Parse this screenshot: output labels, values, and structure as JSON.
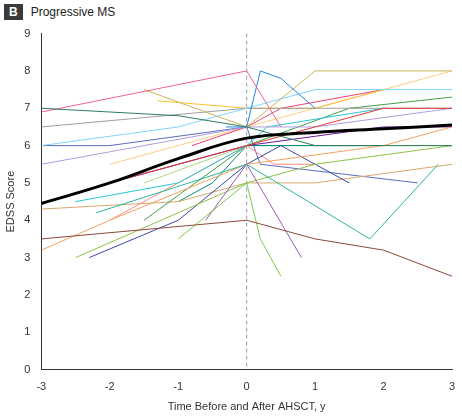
{
  "chart_data": {
    "type": "line",
    "panel": "B",
    "title": "Progressive MS",
    "x_label": "Time Before and After AHSCT, y",
    "y_label": "EDSS Score",
    "xlim": [
      -3,
      3
    ],
    "xticks": [
      -3,
      -2,
      -1,
      0,
      1,
      2,
      3
    ],
    "ylim": [
      0,
      9
    ],
    "yticks": [
      0,
      1,
      2,
      3,
      4,
      5,
      6,
      7,
      8,
      9
    ],
    "grid": false,
    "legend": false,
    "vertical_line": {
      "x": 0,
      "line_style": "dashed",
      "color": "#9e9e9e"
    },
    "series": [
      {
        "color": "#8B4A3A",
        "x": [
          -3,
          0,
          1,
          2,
          3
        ],
        "values": [
          3.5,
          4,
          3.5,
          3.2,
          2.5
        ]
      },
      {
        "color": "#2BB5A0",
        "x": [
          -2.2,
          0,
          1.8,
          2.8
        ],
        "values": [
          4.2,
          5.5,
          3.5,
          5.5
        ]
      },
      {
        "color": "#7ACB4A",
        "x": [
          -1,
          0,
          0.2,
          0.5
        ],
        "values": [
          3.5,
          5,
          3.5,
          2.5
        ]
      },
      {
        "color": "#9B59B6",
        "x": [
          -0.6,
          0,
          0.8
        ],
        "values": [
          4,
          5.5,
          3
        ]
      },
      {
        "color": "#2E7D5B",
        "x": [
          -3,
          -1,
          0,
          1,
          3
        ],
        "values": [
          7,
          6.8,
          6.5,
          6,
          6
        ]
      },
      {
        "color": "#F06292",
        "x": [
          -3,
          0,
          0.5
        ],
        "values": [
          6.9,
          8,
          6.5
        ]
      },
      {
        "color": "#1E88E5",
        "x": [
          -0.3,
          0,
          0.2,
          0.5,
          1
        ],
        "values": [
          6.5,
          6.5,
          8,
          7.8,
          7
        ]
      },
      {
        "color": "#C9B458",
        "x": [
          -1.5,
          0,
          1,
          3
        ],
        "values": [
          7.5,
          6.5,
          8,
          8
        ]
      },
      {
        "color": "#81D4FA",
        "x": [
          -3,
          -1,
          0,
          1,
          3
        ],
        "values": [
          6,
          6.5,
          7,
          7.5,
          7.5
        ]
      },
      {
        "color": "#F4A261",
        "x": [
          -3,
          -2,
          0,
          2,
          3
        ],
        "values": [
          3.2,
          4,
          5.5,
          6,
          6.5
        ]
      },
      {
        "color": "#8BC34A",
        "x": [
          -2.5,
          0,
          1,
          3
        ],
        "values": [
          3,
          5,
          5.5,
          6
        ]
      },
      {
        "color": "#3949AB",
        "x": [
          -2.3,
          -1,
          0,
          0.5,
          1.5
        ],
        "values": [
          3,
          4,
          5.5,
          6,
          5
        ]
      },
      {
        "color": "#E53935",
        "x": [
          -2,
          0,
          1,
          2,
          3
        ],
        "values": [
          5,
          6,
          6.5,
          7,
          7
        ]
      },
      {
        "color": "#B39DDB",
        "x": [
          -3,
          -1.5,
          0,
          1,
          3
        ],
        "values": [
          5.5,
          6,
          6.5,
          6.5,
          7
        ]
      },
      {
        "color": "#26C6DA",
        "x": [
          -2.5,
          -1,
          0,
          0.3,
          2
        ],
        "values": [
          4.5,
          5,
          6,
          6.5,
          7
        ]
      },
      {
        "color": "#9E9E9E",
        "x": [
          -3,
          0,
          1,
          3
        ],
        "values": [
          6.5,
          7,
          7,
          7
        ]
      },
      {
        "color": "#FBC02D",
        "x": [
          -1.3,
          0,
          1,
          2
        ],
        "values": [
          7.2,
          7,
          7,
          7.5
        ]
      },
      {
        "color": "#FF8A80",
        "x": [
          -2,
          0,
          0.4,
          1
        ],
        "values": [
          4,
          6,
          5.5,
          5.5
        ]
      },
      {
        "color": "#43A047",
        "x": [
          -1.5,
          0,
          1.5,
          3
        ],
        "values": [
          4,
          6,
          7,
          7.3
        ]
      },
      {
        "color": "#6A1B9A",
        "x": [
          -2,
          -1,
          0,
          2,
          3
        ],
        "values": [
          5,
          5.5,
          6,
          6.5,
          6.5
        ]
      },
      {
        "color": "#D7A86E",
        "x": [
          -3,
          -1,
          0,
          1,
          3
        ],
        "values": [
          4.3,
          4.5,
          5,
          5,
          5.5
        ]
      },
      {
        "color": "#00897B",
        "x": [
          -1,
          -0.5,
          0,
          1,
          2
        ],
        "values": [
          4.5,
          5,
          6,
          6,
          6
        ]
      },
      {
        "color": "#EC407A",
        "x": [
          -0.8,
          0,
          0.5,
          2
        ],
        "values": [
          6,
          6.5,
          7,
          7.5
        ]
      },
      {
        "color": "#5C6BC0",
        "x": [
          -3,
          -2,
          0,
          0.2,
          2.5
        ],
        "values": [
          6,
          6,
          6.5,
          5.5,
          5
        ]
      },
      {
        "color": "#FFCC80",
        "x": [
          -2,
          0,
          1,
          3
        ],
        "values": [
          5.5,
          6.5,
          7,
          8
        ]
      },
      {
        "color": "#AED581",
        "x": [
          -1.5,
          0,
          2,
          3
        ],
        "values": [
          5,
          6,
          6,
          6
        ]
      },
      {
        "color": "#000000",
        "line_style": "thick",
        "x": [
          -3,
          -2,
          -1,
          0,
          1,
          2,
          3
        ],
        "values": [
          4.45,
          5.0,
          5.65,
          6.2,
          6.35,
          6.45,
          6.55
        ]
      }
    ]
  }
}
